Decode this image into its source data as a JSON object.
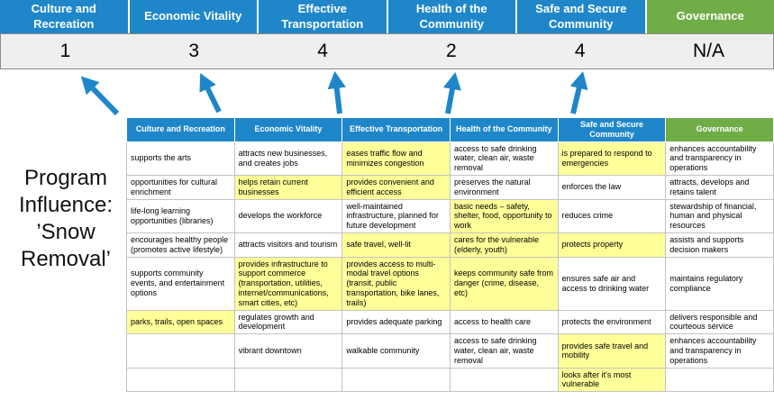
{
  "colors": {
    "header_blue": "#1F87C9",
    "header_green": "#70AD47",
    "highlight_yellow": "#FFFF99",
    "arrow_blue": "#1F87C9",
    "score_bg": "#EFEFEF"
  },
  "program": {
    "label": "Program Influence: ’Snow Removal’"
  },
  "score_panel": {
    "columns": [
      {
        "label": "Culture and Recreation",
        "score": "1",
        "theme": "blue"
      },
      {
        "label": "Economic Vitality",
        "score": "3",
        "theme": "blue"
      },
      {
        "label": "Effective Transportation",
        "score": "4",
        "theme": "blue"
      },
      {
        "label": "Health of the Community",
        "score": "2",
        "theme": "blue"
      },
      {
        "label": "Safe and Secure Community",
        "score": "4",
        "theme": "blue"
      },
      {
        "label": "Governance",
        "score": "N/A",
        "theme": "green"
      }
    ]
  },
  "matrix": {
    "headers": [
      {
        "label": "Culture and Recreation",
        "theme": "blue"
      },
      {
        "label": "Economic Vitality",
        "theme": "blue"
      },
      {
        "label": "Effective Transportation",
        "theme": "blue"
      },
      {
        "label": "Health of the Community",
        "theme": "blue"
      },
      {
        "label": "Safe and Secure Community",
        "theme": "blue"
      },
      {
        "label": "Governance",
        "theme": "green"
      }
    ],
    "rows": [
      [
        {
          "text": "supports the arts",
          "highlight": false
        },
        {
          "text": "attracts new businesses, and creates jobs",
          "highlight": false
        },
        {
          "text": "eases traffic flow and minimizes congestion",
          "highlight": true
        },
        {
          "text": "access to safe drinking water, clean air, waste removal",
          "highlight": false
        },
        {
          "text": "is prepared to respond to emergencies",
          "highlight": true
        },
        {
          "text": "enhances accountability and transparency in operations",
          "highlight": false
        }
      ],
      [
        {
          "text": "opportunities for cultural enrichment",
          "highlight": false
        },
        {
          "text": "helps retain current businesses",
          "highlight": true
        },
        {
          "text": "provides convenient and efficient access",
          "highlight": true
        },
        {
          "text": "preserves the natural environment",
          "highlight": false
        },
        {
          "text": "enforces the law",
          "highlight": false
        },
        {
          "text": "attracts, develops and retains talent",
          "highlight": false
        }
      ],
      [
        {
          "text": "life-long learning opportunities (libraries)",
          "highlight": false
        },
        {
          "text": "develops the workforce",
          "highlight": false
        },
        {
          "text": "well-maintained infrastructure, planned for future development",
          "highlight": false
        },
        {
          "text": "basic needs – safety, shelter, food, opportunity to work",
          "highlight": true
        },
        {
          "text": "reduces crime",
          "highlight": false
        },
        {
          "text": "stewardship of financial, human and physical resources",
          "highlight": false
        }
      ],
      [
        {
          "text": "encourages healthy people (promotes active lifestyle)",
          "highlight": false
        },
        {
          "text": "attracts visitors and tourism",
          "highlight": false
        },
        {
          "text": "safe travel, well-lit",
          "highlight": true
        },
        {
          "text": "cares for the vulnerable (elderly, youth)",
          "highlight": true
        },
        {
          "text": "protects property",
          "highlight": true
        },
        {
          "text": "assists and supports decision makers",
          "highlight": false
        }
      ],
      [
        {
          "text": "supports community events, and entertainment options",
          "highlight": false
        },
        {
          "text": "provides infrastructure to support commerce (transportation, utilities, internet/communications, smart cities, etc)",
          "highlight": true
        },
        {
          "text": "provides access to multi-modal travel options (transit, public transportation, bike lanes, trails)",
          "highlight": true
        },
        {
          "text": "keeps community safe from danger (crime, disease, etc)",
          "highlight": true
        },
        {
          "text": "ensures safe air and access to drinking water",
          "highlight": false
        },
        {
          "text": "maintains regulatory compliance",
          "highlight": false
        }
      ],
      [
        {
          "text": "parks, trails, open spaces",
          "highlight": true
        },
        {
          "text": "regulates growth and development",
          "highlight": false
        },
        {
          "text": "provides adequate parking",
          "highlight": false
        },
        {
          "text": "access to health care",
          "highlight": false
        },
        {
          "text": "protects the environment",
          "highlight": false
        },
        {
          "text": "delivers responsible and courteous service",
          "highlight": false
        }
      ],
      [
        {
          "text": "",
          "highlight": false
        },
        {
          "text": "vibrant downtown",
          "highlight": false
        },
        {
          "text": "walkable community",
          "highlight": false
        },
        {
          "text": "access to safe drinking water, clean air, waste removal",
          "highlight": false
        },
        {
          "text": "provides safe travel and mobility",
          "highlight": true
        },
        {
          "text": "enhances accountability and transparency in operations",
          "highlight": false
        }
      ],
      [
        {
          "text": "",
          "highlight": false
        },
        {
          "text": "",
          "highlight": false
        },
        {
          "text": "",
          "highlight": false
        },
        {
          "text": "",
          "highlight": false
        },
        {
          "text": "looks after it's most vulnerable",
          "highlight": true
        },
        {
          "text": "",
          "highlight": false
        }
      ]
    ]
  }
}
